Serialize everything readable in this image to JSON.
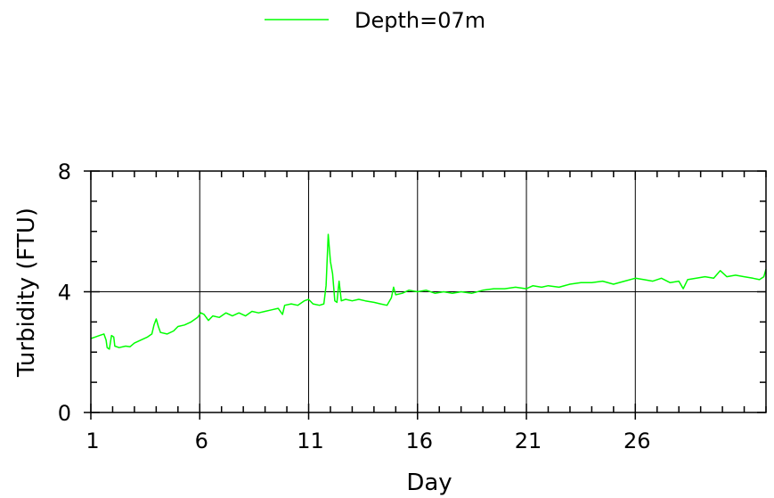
{
  "chart_data": {
    "type": "line",
    "xlabel": "Day",
    "ylabel": "Turbidity (FTU)",
    "xlim": [
      1,
      32
    ],
    "ylim": [
      0,
      8
    ],
    "x_ticks": [
      1,
      6,
      11,
      16,
      21,
      26
    ],
    "y_ticks": [
      0,
      4,
      8
    ],
    "grid": true,
    "legend_position": "top-center",
    "series": [
      {
        "name": "Depth=07m",
        "color": "#00ff00",
        "points": [
          [
            1.0,
            2.45
          ],
          [
            1.2,
            2.5
          ],
          [
            1.4,
            2.55
          ],
          [
            1.6,
            2.6
          ],
          [
            1.7,
            2.4
          ],
          [
            1.75,
            2.15
          ],
          [
            1.85,
            2.1
          ],
          [
            1.95,
            2.55
          ],
          [
            2.05,
            2.5
          ],
          [
            2.1,
            2.2
          ],
          [
            2.3,
            2.15
          ],
          [
            2.6,
            2.2
          ],
          [
            2.8,
            2.18
          ],
          [
            3.0,
            2.3
          ],
          [
            3.3,
            2.4
          ],
          [
            3.6,
            2.5
          ],
          [
            3.8,
            2.6
          ],
          [
            3.9,
            2.9
          ],
          [
            4.0,
            3.1
          ],
          [
            4.1,
            2.85
          ],
          [
            4.2,
            2.65
          ],
          [
            4.5,
            2.6
          ],
          [
            4.8,
            2.7
          ],
          [
            5.0,
            2.85
          ],
          [
            5.3,
            2.9
          ],
          [
            5.6,
            3.0
          ],
          [
            5.9,
            3.15
          ],
          [
            6.05,
            3.3
          ],
          [
            6.2,
            3.25
          ],
          [
            6.4,
            3.05
          ],
          [
            6.6,
            3.2
          ],
          [
            6.9,
            3.15
          ],
          [
            7.2,
            3.3
          ],
          [
            7.5,
            3.2
          ],
          [
            7.8,
            3.3
          ],
          [
            8.1,
            3.2
          ],
          [
            8.4,
            3.35
          ],
          [
            8.7,
            3.3
          ],
          [
            9.0,
            3.35
          ],
          [
            9.3,
            3.4
          ],
          [
            9.6,
            3.45
          ],
          [
            9.8,
            3.25
          ],
          [
            9.9,
            3.55
          ],
          [
            10.2,
            3.6
          ],
          [
            10.5,
            3.55
          ],
          [
            10.8,
            3.7
          ],
          [
            11.0,
            3.75
          ],
          [
            11.2,
            3.6
          ],
          [
            11.5,
            3.55
          ],
          [
            11.7,
            3.6
          ],
          [
            11.8,
            4.2
          ],
          [
            11.9,
            5.9
          ],
          [
            12.0,
            5.0
          ],
          [
            12.1,
            4.6
          ],
          [
            12.2,
            3.7
          ],
          [
            12.3,
            3.65
          ],
          [
            12.4,
            4.35
          ],
          [
            12.5,
            3.7
          ],
          [
            12.7,
            3.75
          ],
          [
            13.0,
            3.7
          ],
          [
            13.3,
            3.75
          ],
          [
            13.6,
            3.7
          ],
          [
            14.0,
            3.65
          ],
          [
            14.3,
            3.6
          ],
          [
            14.6,
            3.55
          ],
          [
            14.8,
            3.8
          ],
          [
            14.9,
            4.15
          ],
          [
            15.0,
            3.9
          ],
          [
            15.3,
            3.95
          ],
          [
            15.6,
            4.05
          ],
          [
            16.0,
            4.0
          ],
          [
            16.4,
            4.05
          ],
          [
            16.8,
            3.95
          ],
          [
            17.2,
            4.0
          ],
          [
            17.6,
            3.95
          ],
          [
            18.0,
            4.0
          ],
          [
            18.5,
            3.95
          ],
          [
            19.0,
            4.05
          ],
          [
            19.5,
            4.1
          ],
          [
            20.0,
            4.1
          ],
          [
            20.5,
            4.15
          ],
          [
            21.0,
            4.1
          ],
          [
            21.3,
            4.2
          ],
          [
            21.7,
            4.15
          ],
          [
            22.0,
            4.2
          ],
          [
            22.5,
            4.15
          ],
          [
            23.0,
            4.25
          ],
          [
            23.5,
            4.3
          ],
          [
            24.0,
            4.3
          ],
          [
            24.5,
            4.35
          ],
          [
            25.0,
            4.25
          ],
          [
            25.5,
            4.35
          ],
          [
            26.0,
            4.45
          ],
          [
            26.4,
            4.4
          ],
          [
            26.8,
            4.35
          ],
          [
            27.2,
            4.45
          ],
          [
            27.6,
            4.3
          ],
          [
            28.0,
            4.35
          ],
          [
            28.2,
            4.1
          ],
          [
            28.4,
            4.4
          ],
          [
            28.8,
            4.45
          ],
          [
            29.2,
            4.5
          ],
          [
            29.6,
            4.45
          ],
          [
            29.9,
            4.7
          ],
          [
            30.2,
            4.5
          ],
          [
            30.6,
            4.55
          ],
          [
            31.0,
            4.5
          ],
          [
            31.4,
            4.45
          ],
          [
            31.7,
            4.4
          ],
          [
            31.9,
            4.5
          ],
          [
            32.0,
            4.75
          ]
        ]
      }
    ]
  }
}
